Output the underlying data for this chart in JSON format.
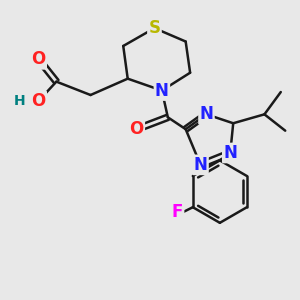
{
  "bg_color": "#e8e8e8",
  "bond_color": "#1a1a1a",
  "bond_width": 1.8,
  "atom_colors": {
    "S": "#b8b800",
    "N": "#2222ff",
    "O": "#ff2222",
    "F": "#ff00ff",
    "H": "#008080",
    "C": "#1a1a1a"
  },
  "font_size_atoms": 12
}
